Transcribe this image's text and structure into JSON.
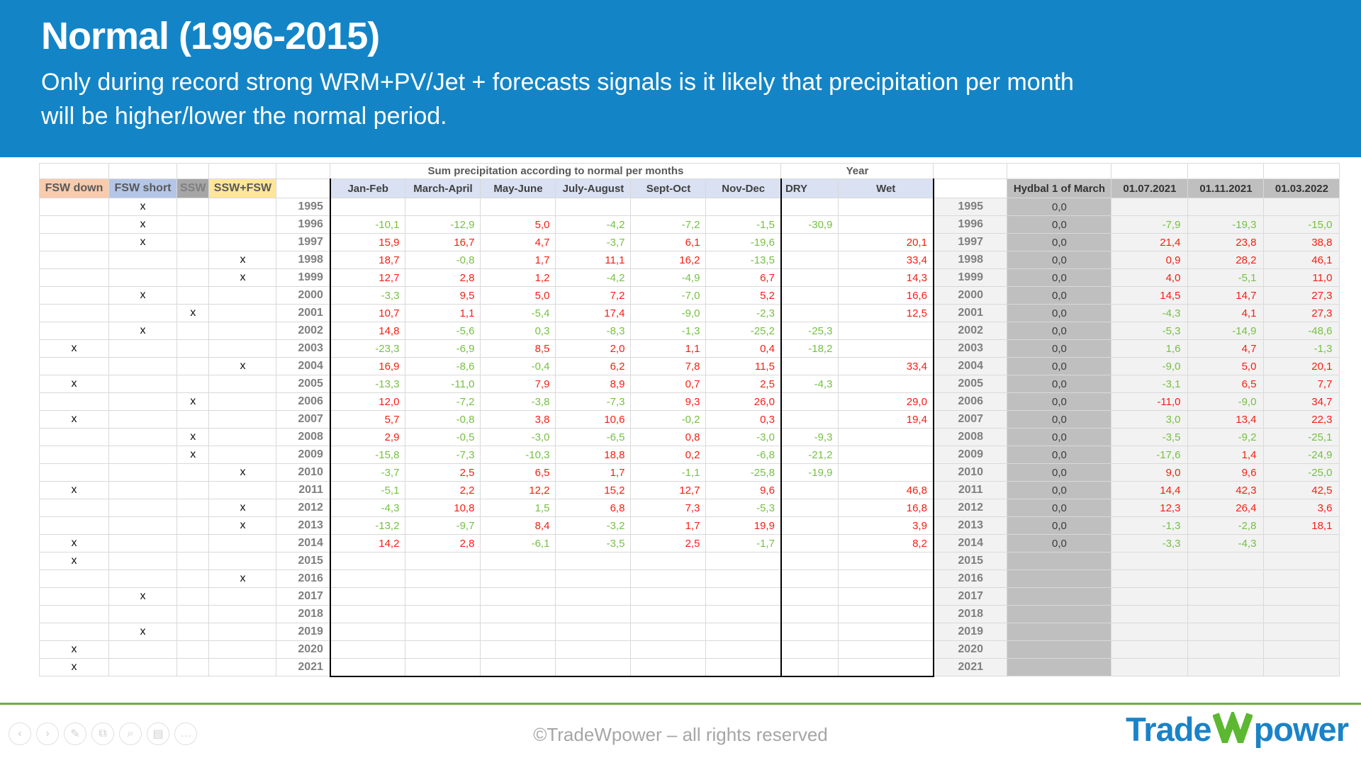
{
  "slide": {
    "title": "Normal (1996-2015)",
    "subtitle": "Only during record strong WRM+PV/Jet + forecasts signals is it likely that precipitation per month will be higher/lower the normal period."
  },
  "colors": {
    "banner_blue": "#1385C7",
    "red": "#F51E12",
    "green": "#76C043",
    "green_line": "#70AD47",
    "logo_blue": "#1A83C8",
    "logo_green": "#5CB831",
    "header_fill": "#D9E1F2",
    "gray_fill": "#BFBFBF",
    "light_fill": "#F2F2F2",
    "footer_text": "#A6A6A6",
    "year_text": "#7F7F7F",
    "grid": "#D9D9D9"
  },
  "table": {
    "category_headers": [
      {
        "label": "FSW down",
        "bg": "#F8CBAD"
      },
      {
        "label": "FSW short",
        "bg": "#B4C6E7"
      },
      {
        "label": "SSW",
        "bg": "#A6A6A6"
      },
      {
        "label": "SSW+FSW",
        "bg": "#FFE699"
      }
    ],
    "group_headers": {
      "precip": "Sum precipitation according to normal per months",
      "year": "Year"
    },
    "month_headers": [
      "Jan-Feb",
      "March-April",
      "May-June",
      "July-August",
      "Sept-Oct",
      "Nov-Dec"
    ],
    "dry_header": "DRY",
    "wet_header": "Wet",
    "right_headers": [
      "Hydbal  1 of March",
      "01.07.2021",
      "01.11.2021",
      "01.03.2022"
    ],
    "rows": [
      {
        "y": "1995",
        "mark": 1,
        "m": null,
        "dry": null,
        "wet": null,
        "hyd": "0,0",
        "d": null
      },
      {
        "y": "1996",
        "mark": 1,
        "m": [
          [
            "-10,1",
            "g"
          ],
          [
            "-12,9",
            "g"
          ],
          [
            "5,0",
            "r"
          ],
          [
            "-4,2",
            "g"
          ],
          [
            "-7,2",
            "g"
          ],
          [
            "-1,5",
            "g"
          ]
        ],
        "dry": [
          "-30,9",
          "g"
        ],
        "wet": null,
        "hyd": "0,0",
        "d": [
          [
            "-7,9",
            "g"
          ],
          [
            "-19,3",
            "g"
          ],
          [
            "-15,0",
            "g"
          ]
        ]
      },
      {
        "y": "1997",
        "mark": 1,
        "m": [
          [
            "15,9",
            "r"
          ],
          [
            "16,7",
            "r"
          ],
          [
            "4,7",
            "r"
          ],
          [
            "-3,7",
            "g"
          ],
          [
            "6,1",
            "r"
          ],
          [
            "-19,6",
            "g"
          ]
        ],
        "dry": null,
        "wet": [
          "20,1",
          "r"
        ],
        "hyd": "0,0",
        "d": [
          [
            "21,4",
            "r"
          ],
          [
            "23,8",
            "r"
          ],
          [
            "38,8",
            "r"
          ]
        ]
      },
      {
        "y": "1998",
        "mark": 3,
        "m": [
          [
            "18,7",
            "r"
          ],
          [
            "-0,8",
            "g"
          ],
          [
            "1,7",
            "r"
          ],
          [
            "11,1",
            "r"
          ],
          [
            "16,2",
            "r"
          ],
          [
            "-13,5",
            "g"
          ]
        ],
        "dry": null,
        "wet": [
          "33,4",
          "r"
        ],
        "hyd": "0,0",
        "d": [
          [
            "0,9",
            "r"
          ],
          [
            "28,2",
            "r"
          ],
          [
            "46,1",
            "r"
          ]
        ]
      },
      {
        "y": "1999",
        "mark": 3,
        "m": [
          [
            "12,7",
            "r"
          ],
          [
            "2,8",
            "r"
          ],
          [
            "1,2",
            "r"
          ],
          [
            "-4,2",
            "g"
          ],
          [
            "-4,9",
            "g"
          ],
          [
            "6,7",
            "r"
          ]
        ],
        "dry": null,
        "wet": [
          "14,3",
          "r"
        ],
        "hyd": "0,0",
        "d": [
          [
            "4,0",
            "r"
          ],
          [
            "-5,1",
            "g"
          ],
          [
            "11,0",
            "r"
          ]
        ]
      },
      {
        "y": "2000",
        "mark": 1,
        "m": [
          [
            "-3,3",
            "g"
          ],
          [
            "9,5",
            "r"
          ],
          [
            "5,0",
            "r"
          ],
          [
            "7,2",
            "r"
          ],
          [
            "-7,0",
            "g"
          ],
          [
            "5,2",
            "r"
          ]
        ],
        "dry": null,
        "wet": [
          "16,6",
          "r"
        ],
        "hyd": "0,0",
        "d": [
          [
            "14,5",
            "r"
          ],
          [
            "14,7",
            "r"
          ],
          [
            "27,3",
            "r"
          ]
        ]
      },
      {
        "y": "2001",
        "mark": 2,
        "m": [
          [
            "10,7",
            "r"
          ],
          [
            "1,1",
            "r"
          ],
          [
            "-5,4",
            "g"
          ],
          [
            "17,4",
            "r"
          ],
          [
            "-9,0",
            "g"
          ],
          [
            "-2,3",
            "g"
          ]
        ],
        "dry": null,
        "wet": [
          "12,5",
          "r"
        ],
        "hyd": "0,0",
        "d": [
          [
            "-4,3",
            "g"
          ],
          [
            "4,1",
            "r"
          ],
          [
            "27,3",
            "r"
          ]
        ]
      },
      {
        "y": "2002",
        "mark": 1,
        "m": [
          [
            "14,8",
            "r"
          ],
          [
            "-5,6",
            "g"
          ],
          [
            "0,3",
            "g"
          ],
          [
            "-8,3",
            "g"
          ],
          [
            "-1,3",
            "g"
          ],
          [
            "-25,2",
            "g"
          ]
        ],
        "dry": [
          "-25,3",
          "g"
        ],
        "wet": null,
        "hyd": "0,0",
        "d": [
          [
            "-5,3",
            "g"
          ],
          [
            "-14,9",
            "g"
          ],
          [
            "-48,6",
            "g"
          ]
        ]
      },
      {
        "y": "2003",
        "mark": 0,
        "m": [
          [
            "-23,3",
            "g"
          ],
          [
            "-6,9",
            "g"
          ],
          [
            "8,5",
            "r"
          ],
          [
            "2,0",
            "r"
          ],
          [
            "1,1",
            "r"
          ],
          [
            "0,4",
            "r"
          ]
        ],
        "dry": [
          "-18,2",
          "g"
        ],
        "wet": null,
        "hyd": "0,0",
        "d": [
          [
            "1,6",
            "g"
          ],
          [
            "4,7",
            "r"
          ],
          [
            "-1,3",
            "g"
          ]
        ]
      },
      {
        "y": "2004",
        "mark": 3,
        "m": [
          [
            "16,9",
            "r"
          ],
          [
            "-8,6",
            "g"
          ],
          [
            "-0,4",
            "g"
          ],
          [
            "6,2",
            "r"
          ],
          [
            "7,8",
            "r"
          ],
          [
            "11,5",
            "r"
          ]
        ],
        "dry": null,
        "wet": [
          "33,4",
          "r"
        ],
        "hyd": "0,0",
        "d": [
          [
            "-9,0",
            "g"
          ],
          [
            "5,0",
            "r"
          ],
          [
            "20,1",
            "r"
          ]
        ]
      },
      {
        "y": "2005",
        "mark": 0,
        "m": [
          [
            "-13,3",
            "g"
          ],
          [
            "-11,0",
            "g"
          ],
          [
            "7,9",
            "r"
          ],
          [
            "8,9",
            "r"
          ],
          [
            "0,7",
            "r"
          ],
          [
            "2,5",
            "r"
          ]
        ],
        "dry": [
          "-4,3",
          "g"
        ],
        "wet": null,
        "hyd": "0,0",
        "d": [
          [
            "-3,1",
            "g"
          ],
          [
            "6,5",
            "r"
          ],
          [
            "7,7",
            "r"
          ]
        ]
      },
      {
        "y": "2006",
        "mark": 2,
        "m": [
          [
            "12,0",
            "r"
          ],
          [
            "-7,2",
            "g"
          ],
          [
            "-3,8",
            "g"
          ],
          [
            "-7,3",
            "g"
          ],
          [
            "9,3",
            "r"
          ],
          [
            "26,0",
            "r"
          ]
        ],
        "dry": null,
        "wet": [
          "29,0",
          "r"
        ],
        "hyd": "0,0",
        "d": [
          [
            "-11,0",
            "r"
          ],
          [
            "-9,0",
            "g"
          ],
          [
            "34,7",
            "r"
          ]
        ]
      },
      {
        "y": "2007",
        "mark": 0,
        "m": [
          [
            "5,7",
            "r"
          ],
          [
            "-0,8",
            "g"
          ],
          [
            "3,8",
            "r"
          ],
          [
            "10,6",
            "r"
          ],
          [
            "-0,2",
            "g"
          ],
          [
            "0,3",
            "r"
          ]
        ],
        "dry": null,
        "wet": [
          "19,4",
          "r"
        ],
        "hyd": "0,0",
        "d": [
          [
            "3,0",
            "g"
          ],
          [
            "13,4",
            "r"
          ],
          [
            "22,3",
            "r"
          ]
        ]
      },
      {
        "y": "2008",
        "mark": 2,
        "m": [
          [
            "2,9",
            "r"
          ],
          [
            "-0,5",
            "g"
          ],
          [
            "-3,0",
            "g"
          ],
          [
            "-6,5",
            "g"
          ],
          [
            "0,8",
            "r"
          ],
          [
            "-3,0",
            "g"
          ]
        ],
        "dry": [
          "-9,3",
          "g"
        ],
        "wet": null,
        "hyd": "0,0",
        "d": [
          [
            "-3,5",
            "g"
          ],
          [
            "-9,2",
            "g"
          ],
          [
            "-25,1",
            "g"
          ]
        ]
      },
      {
        "y": "2009",
        "mark": 2,
        "m": [
          [
            "-15,8",
            "g"
          ],
          [
            "-7,3",
            "g"
          ],
          [
            "-10,3",
            "g"
          ],
          [
            "18,8",
            "r"
          ],
          [
            "0,2",
            "r"
          ],
          [
            "-6,8",
            "g"
          ]
        ],
        "dry": [
          "-21,2",
          "g"
        ],
        "wet": null,
        "hyd": "0,0",
        "d": [
          [
            "-17,6",
            "g"
          ],
          [
            "1,4",
            "r"
          ],
          [
            "-24,9",
            "g"
          ]
        ]
      },
      {
        "y": "2010",
        "mark": 3,
        "m": [
          [
            "-3,7",
            "g"
          ],
          [
            "2,5",
            "r"
          ],
          [
            "6,5",
            "r"
          ],
          [
            "1,7",
            "r"
          ],
          [
            "-1,1",
            "g"
          ],
          [
            "-25,8",
            "g"
          ]
        ],
        "dry": [
          "-19,9",
          "g"
        ],
        "wet": null,
        "hyd": "0,0",
        "d": [
          [
            "9,0",
            "r"
          ],
          [
            "9,6",
            "r"
          ],
          [
            "-25,0",
            "g"
          ]
        ]
      },
      {
        "y": "2011",
        "mark": 0,
        "m": [
          [
            "-5,1",
            "g"
          ],
          [
            "2,2",
            "r"
          ],
          [
            "12,2",
            "r"
          ],
          [
            "15,2",
            "r"
          ],
          [
            "12,7",
            "r"
          ],
          [
            "9,6",
            "r"
          ]
        ],
        "dry": null,
        "wet": [
          "46,8",
          "r"
        ],
        "hyd": "0,0",
        "d": [
          [
            "14,4",
            "r"
          ],
          [
            "42,3",
            "r"
          ],
          [
            "42,5",
            "r"
          ]
        ]
      },
      {
        "y": "2012",
        "mark": 3,
        "m": [
          [
            "-4,3",
            "g"
          ],
          [
            "10,8",
            "r"
          ],
          [
            "1,5",
            "g"
          ],
          [
            "6,8",
            "r"
          ],
          [
            "7,3",
            "r"
          ],
          [
            "-5,3",
            "g"
          ]
        ],
        "dry": null,
        "wet": [
          "16,8",
          "r"
        ],
        "hyd": "0,0",
        "d": [
          [
            "12,3",
            "r"
          ],
          [
            "26,4",
            "r"
          ],
          [
            "3,6",
            "r"
          ]
        ]
      },
      {
        "y": "2013",
        "mark": 3,
        "m": [
          [
            "-13,2",
            "g"
          ],
          [
            "-9,7",
            "g"
          ],
          [
            "8,4",
            "r"
          ],
          [
            "-3,2",
            "g"
          ],
          [
            "1,7",
            "r"
          ],
          [
            "19,9",
            "r"
          ]
        ],
        "dry": null,
        "wet": [
          "3,9",
          "r"
        ],
        "hyd": "0,0",
        "d": [
          [
            "-1,3",
            "g"
          ],
          [
            "-2,8",
            "g"
          ],
          [
            "18,1",
            "r"
          ]
        ]
      },
      {
        "y": "2014",
        "mark": 0,
        "m": [
          [
            "14,2",
            "r"
          ],
          [
            "2,8",
            "r"
          ],
          [
            "-6,1",
            "g"
          ],
          [
            "-3,5",
            "g"
          ],
          [
            "2,5",
            "r"
          ],
          [
            "-1,7",
            "g"
          ]
        ],
        "dry": null,
        "wet": [
          "8,2",
          "r"
        ],
        "hyd": "0,0",
        "d": [
          [
            "-3,3",
            "g"
          ],
          [
            "-4,3",
            "g"
          ],
          null
        ]
      },
      {
        "y": "2015",
        "mark": 0,
        "m": null,
        "dry": null,
        "wet": null,
        "hyd": null,
        "d": null
      },
      {
        "y": "2016",
        "mark": 3,
        "m": null,
        "dry": null,
        "wet": null,
        "hyd": null,
        "d": null
      },
      {
        "y": "2017",
        "mark": 1,
        "m": null,
        "dry": null,
        "wet": null,
        "hyd": null,
        "d": null
      },
      {
        "y": "2018",
        "mark": null,
        "m": null,
        "dry": null,
        "wet": null,
        "hyd": null,
        "d": null
      },
      {
        "y": "2019",
        "mark": 1,
        "m": null,
        "dry": null,
        "wet": null,
        "hyd": null,
        "d": null
      },
      {
        "y": "2020",
        "mark": 0,
        "m": null,
        "dry": null,
        "wet": null,
        "hyd": null,
        "d": null
      },
      {
        "y": "2021",
        "mark": 0,
        "m": null,
        "dry": null,
        "wet": null,
        "hyd": null,
        "d": null
      }
    ]
  },
  "footer": {
    "copyright": "©TradeWpower – all rights reserved",
    "logo": {
      "part1": "Trade",
      "part2": "W",
      "part3": "power"
    },
    "toolbar": [
      {
        "name": "prev-slide-icon",
        "glyph": "‹"
      },
      {
        "name": "next-slide-icon",
        "glyph": "›"
      },
      {
        "name": "pen-icon",
        "glyph": "✎"
      },
      {
        "name": "slide-sorter-icon",
        "glyph": "⧉"
      },
      {
        "name": "zoom-icon",
        "glyph": "⌕"
      },
      {
        "name": "presenter-view-icon",
        "glyph": "▤"
      },
      {
        "name": "more-options-icon",
        "glyph": "…"
      }
    ]
  }
}
